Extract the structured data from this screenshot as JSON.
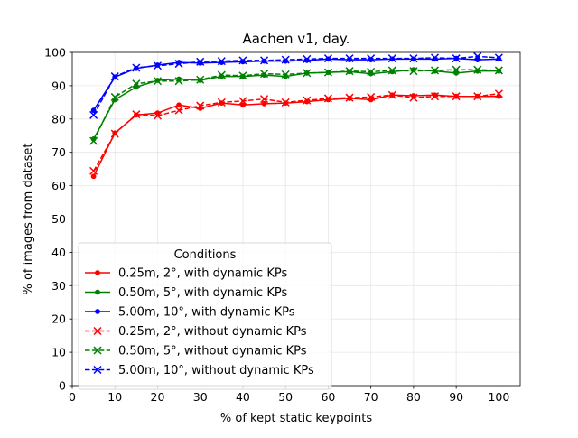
{
  "chart_data": {
    "type": "line",
    "title": "Aachen v1, day.",
    "xlabel": "% of kept static keypoints",
    "ylabel": "% of images from dataset",
    "xlim": [
      0,
      105
    ],
    "ylim": [
      0,
      100
    ],
    "xticks": [
      0,
      10,
      20,
      30,
      40,
      50,
      60,
      70,
      80,
      90,
      100
    ],
    "yticks": [
      0,
      10,
      20,
      30,
      40,
      50,
      60,
      70,
      80,
      90,
      100
    ],
    "grid": true,
    "legend": {
      "title": "Conditions",
      "placement": "lower-left"
    },
    "x": [
      5,
      10,
      15,
      20,
      25,
      30,
      35,
      40,
      45,
      50,
      55,
      60,
      65,
      70,
      75,
      80,
      85,
      90,
      95,
      100
    ],
    "series": [
      {
        "name": "0.25m, 2°, with dynamic KPs",
        "color": "#ff0000",
        "line_style": "solid",
        "marker": "dot",
        "values": [
          62.8,
          75.8,
          81.2,
          81.8,
          84.2,
          83.2,
          84.8,
          84.2,
          84.6,
          84.8,
          85.2,
          85.8,
          86.2,
          85.8,
          87.2,
          87.0,
          87.2,
          86.8,
          86.8,
          86.8
        ]
      },
      {
        "name": "0.50m, 5°, with dynamic KPs",
        "color": "#008000",
        "line_style": "solid",
        "marker": "dot",
        "values": [
          74.0,
          85.8,
          89.6,
          91.6,
          92.0,
          91.6,
          92.8,
          92.8,
          93.2,
          92.8,
          93.8,
          94.0,
          94.2,
          93.6,
          94.2,
          94.8,
          94.4,
          93.8,
          94.4,
          94.4
        ]
      },
      {
        "name": "5.00m, 10°, with dynamic KPs",
        "color": "#0000ff",
        "line_style": "solid",
        "marker": "dot",
        "values": [
          82.6,
          92.6,
          95.2,
          96.2,
          97.0,
          96.8,
          97.0,
          97.2,
          97.4,
          97.4,
          97.6,
          98.0,
          97.8,
          97.8,
          98.0,
          98.0,
          98.0,
          98.2,
          97.8,
          98.0
        ]
      },
      {
        "name": "0.25m, 2°, without dynamic KPs",
        "color": "#ff0000",
        "line_style": "dashed",
        "marker": "x",
        "values": [
          64.4,
          75.6,
          81.4,
          81.0,
          82.6,
          84.0,
          85.0,
          85.4,
          86.0,
          85.0,
          85.6,
          86.2,
          86.4,
          86.6,
          87.2,
          86.4,
          86.8,
          86.8,
          86.8,
          87.6
        ]
      },
      {
        "name": "0.50m, 5°, without dynamic KPs",
        "color": "#008000",
        "line_style": "dashed",
        "marker": "x",
        "values": [
          73.4,
          86.6,
          90.6,
          91.4,
          91.4,
          91.8,
          93.2,
          93.0,
          93.6,
          93.4,
          93.8,
          94.0,
          94.4,
          94.2,
          94.6,
          94.4,
          94.6,
          94.8,
          94.8,
          94.6
        ]
      },
      {
        "name": "5.00m, 10°, without dynamic KPs",
        "color": "#0000ff",
        "line_style": "dashed",
        "marker": "x",
        "values": [
          81.2,
          92.8,
          95.4,
          96.0,
          96.6,
          97.2,
          97.4,
          97.6,
          97.6,
          97.8,
          98.0,
          98.2,
          98.2,
          98.2,
          98.2,
          98.2,
          98.4,
          98.2,
          98.8,
          98.4
        ]
      }
    ]
  }
}
